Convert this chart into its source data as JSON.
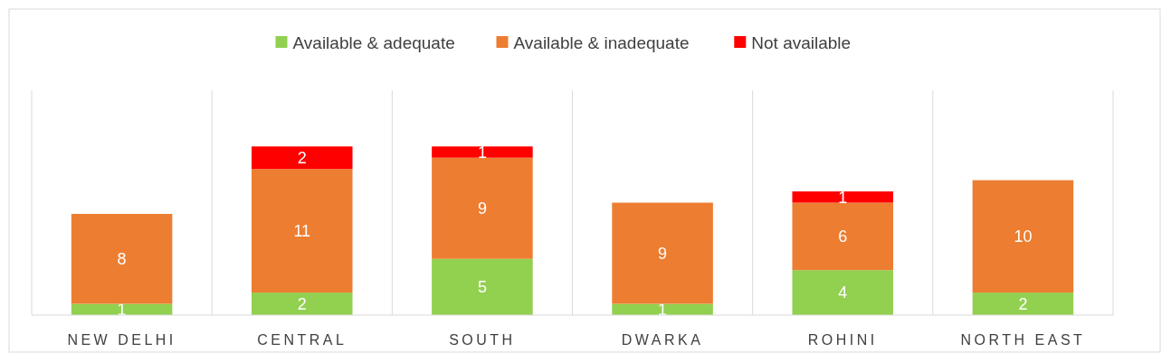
{
  "chart_data": {
    "type": "bar",
    "stacked": true,
    "categories": [
      "NEW DELHI",
      "CENTRAL",
      "SOUTH",
      "DWARKA",
      "ROHINI",
      "NORTH EAST"
    ],
    "series": [
      {
        "name": "Available & adequate",
        "color": "#92d050",
        "values": [
          1,
          2,
          5,
          1,
          4,
          2
        ]
      },
      {
        "name": "Available & inadequate",
        "color": "#ed7d31",
        "values": [
          8,
          11,
          9,
          9,
          6,
          10
        ]
      },
      {
        "name": "Not available",
        "color": "#ff0000",
        "values": [
          null,
          2,
          1,
          null,
          1,
          null
        ]
      }
    ],
    "ylim": [
      0,
      20
    ],
    "tick_labels": "x",
    "grid": "x",
    "legend": "top",
    "data_labels": true
  }
}
